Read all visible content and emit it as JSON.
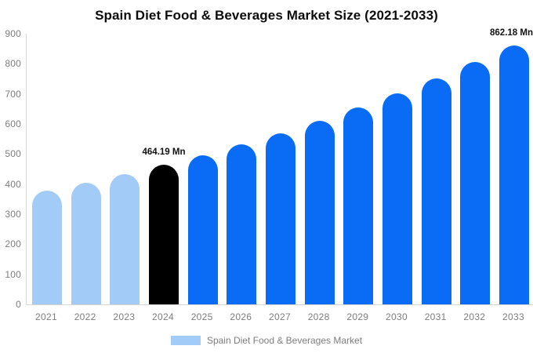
{
  "chart_data": {
    "type": "bar",
    "title": "Spain Diet Food & Beverages Market Size (2021-2033)",
    "unit": "Mn",
    "categories": [
      "2021",
      "2022",
      "2023",
      "2024",
      "2025",
      "2026",
      "2027",
      "2028",
      "2029",
      "2030",
      "2031",
      "2032",
      "2033"
    ],
    "series": [
      {
        "name": "Spain Diet Food & Beverages Market",
        "values": [
          378,
          404,
          433,
          464.19,
          497,
          533,
          570,
          611,
          655,
          701,
          751,
          805,
          862.18
        ]
      }
    ],
    "annotations": [
      {
        "index": 3,
        "text": "464.19 Mn"
      },
      {
        "index": 12,
        "text": "862.18 Mn"
      }
    ],
    "ylim": [
      0,
      900
    ],
    "yticks": [
      900,
      800,
      700,
      600,
      500,
      400,
      300,
      200,
      100,
      0
    ],
    "grid": false,
    "legend_position": "bottom",
    "bar_colors": [
      "#A3CBF7",
      "#A3CBF7",
      "#A3CBF7",
      "#000000",
      "#0A6CF5",
      "#0A6CF5",
      "#0A6CF5",
      "#0A6CF5",
      "#0A6CF5",
      "#0A6CF5",
      "#0A6CF5",
      "#0A6CF5",
      "#0A6CF5"
    ]
  },
  "legend": {
    "label": "Spain Diet Food & Beverages Market",
    "swatch_color": "#A3CBF7"
  },
  "colors": {
    "title_text": "#0d0d0d",
    "tick_text": "#7d7d7d",
    "annotation_text": "#111111",
    "axis_line": "#d6d6d6"
  }
}
